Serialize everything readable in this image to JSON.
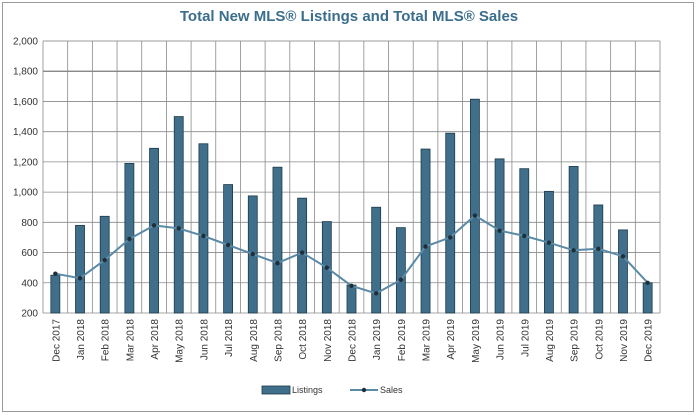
{
  "chart_data": {
    "type": "bar",
    "title": "Total New MLS® Listings and Total MLS® Sales",
    "xlabel": "",
    "ylabel": "",
    "ylim": [
      200,
      2000
    ],
    "yticks": [
      200,
      400,
      600,
      800,
      1000,
      1200,
      1400,
      1600,
      1800,
      2000
    ],
    "ytick_labels": [
      "200",
      "400",
      "600",
      "800",
      "1,000",
      "1,200",
      "1,400",
      "1,600",
      "1,800",
      "2,000"
    ],
    "grid": true,
    "legend_position": "bottom",
    "categories": [
      "Dec 2017",
      "Jan 2018",
      "Feb 2018",
      "Mar 2018",
      "Apr 2018",
      "May 2018",
      "Jun 2018",
      "Jul 2018",
      "Aug 2018",
      "Sep 2018",
      "Oct 2018",
      "Nov 2018",
      "Dec 2018",
      "Jan 2019",
      "Feb 2019",
      "Mar 2019",
      "Apr 2019",
      "May 2019",
      "Jun 2019",
      "Jul 2019",
      "Aug 2019",
      "Sep 2019",
      "Oct 2019",
      "Nov 2019",
      "Dec 2019"
    ],
    "series": [
      {
        "name": "Listings",
        "type": "bar",
        "color": "#3f6f8a",
        "values": [
          450,
          780,
          840,
          1190,
          1290,
          1500,
          1320,
          1050,
          975,
          1165,
          960,
          805,
          385,
          900,
          765,
          1285,
          1390,
          1615,
          1220,
          1155,
          1005,
          1170,
          915,
          750,
          400
        ]
      },
      {
        "name": "Sales",
        "type": "line",
        "color": "#5b8aa6",
        "marker_color": "#1f2f3a",
        "values": [
          460,
          430,
          550,
          690,
          780,
          760,
          710,
          650,
          590,
          530,
          600,
          500,
          380,
          330,
          420,
          640,
          700,
          845,
          745,
          710,
          665,
          615,
          625,
          575,
          400
        ]
      }
    ]
  }
}
